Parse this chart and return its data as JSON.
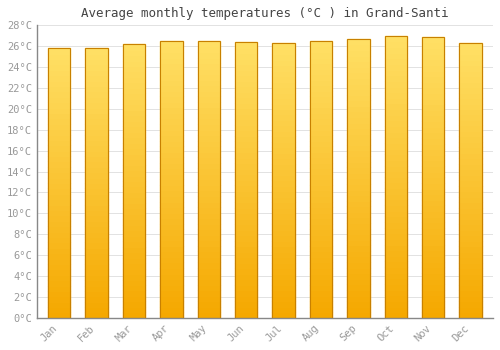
{
  "title": "Average monthly temperatures (°C ) in Grand-Santi",
  "months": [
    "Jan",
    "Feb",
    "Mar",
    "Apr",
    "May",
    "Jun",
    "Jul",
    "Aug",
    "Sep",
    "Oct",
    "Nov",
    "Dec"
  ],
  "temperatures": [
    25.8,
    25.8,
    26.2,
    26.5,
    26.5,
    26.4,
    26.3,
    26.5,
    26.7,
    27.0,
    26.9,
    26.3
  ],
  "ylim": [
    0,
    28
  ],
  "yticks": [
    0,
    2,
    4,
    6,
    8,
    10,
    12,
    14,
    16,
    18,
    20,
    22,
    24,
    26,
    28
  ],
  "bar_color_bottom": "#F5A800",
  "bar_color_top": "#FFE066",
  "bar_edge_color": "#C88000",
  "background_color": "#FFFFFF",
  "grid_color": "#DDDDDD",
  "title_fontsize": 9,
  "tick_fontsize": 7.5,
  "tick_color": "#999999",
  "title_color": "#444444",
  "bar_width": 0.6
}
